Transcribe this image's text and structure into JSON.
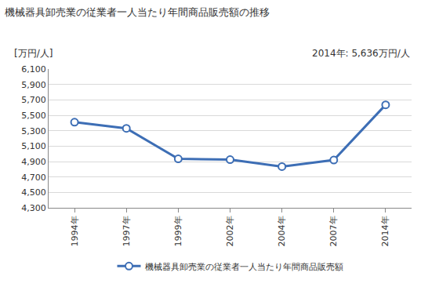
{
  "chart_data": {
    "type": "line",
    "title": "機械器具卸売業の従業者一人当たり年間商品販売額の推移",
    "y_label": "[万円/人]",
    "annotations": [
      "2014年: 5,636万円/人"
    ],
    "categories": [
      "1994年",
      "1997年",
      "1999年",
      "2002年",
      "2004年",
      "2007年",
      "2014年"
    ],
    "series": [
      {
        "name": "機械器具卸売業の従業者一人当たり年間商品販売額",
        "color": "#3d6eb5",
        "marker": "circle",
        "values": [
          5410,
          5330,
          4935,
          4925,
          4835,
          4920,
          5636
        ]
      }
    ],
    "ylim": [
      4300,
      6100
    ],
    "yticks": [
      {
        "value": 4300,
        "label": "4,300"
      },
      {
        "value": 4500,
        "label": "4,500"
      },
      {
        "value": 4700,
        "label": "4,700"
      },
      {
        "value": 4900,
        "label": "4,900"
      },
      {
        "value": 5100,
        "label": "5,100"
      },
      {
        "value": 5300,
        "label": "5,300"
      },
      {
        "value": 5500,
        "label": "5,500"
      },
      {
        "value": 5700,
        "label": "5,700"
      },
      {
        "value": 5900,
        "label": "5,900"
      },
      {
        "value": 6100,
        "label": "6,100"
      }
    ],
    "grid": true,
    "legend": "bottom"
  }
}
